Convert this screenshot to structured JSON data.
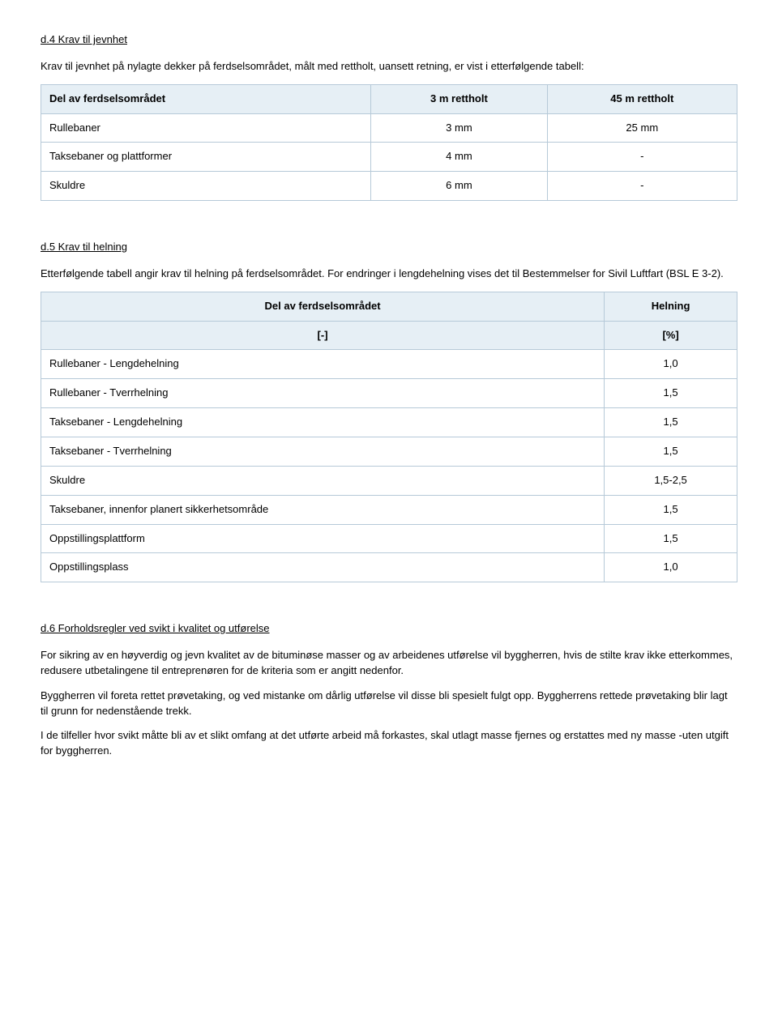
{
  "section_d4": {
    "title": "d.4 Krav til jevnhet",
    "intro": "Krav til jevnhet på nylagte dekker på ferdselsområdet, målt med rettholt, uansett retning, er vist i etterfølgende tabell:",
    "table": {
      "header_bg": "#e6eff5",
      "border_color": "#b6c9d8",
      "columns": [
        "Del av ferdselsområdet",
        "3 m rettholt",
        "45 m rettholt"
      ],
      "rows": [
        [
          "Rullebaner",
          "3 mm",
          "25 mm"
        ],
        [
          "Taksebaner og plattformer",
          "4 mm",
          "-"
        ],
        [
          "Skuldre",
          "6 mm",
          "-"
        ]
      ]
    }
  },
  "section_d5": {
    "title": "d.5 Krav til helning",
    "intro": "Etterfølgende tabell angir krav til helning på ferdselsområdet. For endringer i lengdehelning vises det til Bestemmelser for Sivil Luftfart (BSL E 3-2).",
    "table": {
      "header_bg": "#e6eff5",
      "border_color": "#b6c9d8",
      "top_headers": [
        "Del av ferdselsområdet",
        "Helning"
      ],
      "unit_headers": [
        "[-]",
        "[%]"
      ],
      "rows": [
        [
          "Rullebaner - Lengdehelning",
          "1,0"
        ],
        [
          "Rullebaner - Tverrhelning",
          "1,5"
        ],
        [
          "Taksebaner - Lengdehelning",
          "1,5"
        ],
        [
          "Taksebaner - Tverrhelning",
          "1,5"
        ],
        [
          "Skuldre",
          "1,5-2,5"
        ],
        [
          "Taksebaner, innenfor planert sikkerhetsområde",
          "1,5"
        ],
        [
          "Oppstillingsplattform",
          "1,5"
        ],
        [
          "Oppstillingsplass",
          "1,0"
        ]
      ]
    }
  },
  "section_d6": {
    "title": "d.6 Forholdsregler ved svikt i kvalitet og utførelse",
    "paragraphs": [
      "For sikring av en høyverdig og jevn kvalitet av de bituminøse masser og av arbeidenes utførelse vil byggherren, hvis de stilte krav ikke etterkommes, redusere utbetalingene til entreprenøren for de kriteria som er angitt nedenfor.",
      "Byggherren vil foreta rettet prøvetaking, og ved mistanke om dårlig utførelse vil disse bli spesielt fulgt opp. Byggherrens rettede prøvetaking blir lagt til grunn for nedenstående trekk.",
      "I de tilfeller hvor svikt måtte bli av et slikt omfang at det utførte arbeid må forkastes, skal utlagt masse fjernes og erstattes med ny masse -uten utgift for byggherren."
    ]
  }
}
